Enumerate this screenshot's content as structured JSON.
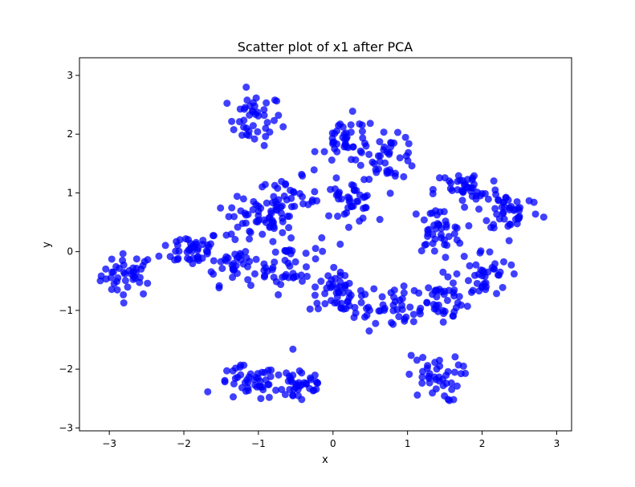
{
  "chart_data": {
    "type": "scatter",
    "title": "Scatter plot of x1 after PCA",
    "xlabel": "x",
    "ylabel": "y",
    "xlim": [
      -3.4,
      3.2
    ],
    "ylim": [
      -3.05,
      3.3
    ],
    "xticks": [
      -3,
      -2,
      -1,
      0,
      1,
      2,
      3
    ],
    "yticks": [
      -3,
      -2,
      -1,
      0,
      1,
      2,
      3
    ],
    "grid": false,
    "marker_color": "#0000ff",
    "marker_opacity": 0.75,
    "points_per_cluster": 42,
    "clusters": [
      {
        "center": [
          -2.75,
          -0.4
        ],
        "spread": [
          0.18,
          0.18
        ]
      },
      {
        "center": [
          -1.05,
          2.25
        ],
        "spread": [
          0.18,
          0.22
        ]
      },
      {
        "center": [
          -1.05,
          0.55
        ],
        "spread": [
          0.2,
          0.18
        ]
      },
      {
        "center": [
          -1.9,
          0.05
        ],
        "spread": [
          0.2,
          0.15
        ]
      },
      {
        "center": [
          -1.3,
          -0.2
        ],
        "spread": [
          0.22,
          0.18
        ]
      },
      {
        "center": [
          -0.6,
          -0.2
        ],
        "spread": [
          0.22,
          0.25
        ]
      },
      {
        "center": [
          -0.6,
          0.85
        ],
        "spread": [
          0.2,
          0.2
        ]
      },
      {
        "center": [
          0.05,
          -0.7
        ],
        "spread": [
          0.18,
          0.15
        ]
      },
      {
        "center": [
          -0.45,
          -2.25
        ],
        "spread": [
          0.2,
          0.18
        ]
      },
      {
        "center": [
          -1.15,
          -2.25
        ],
        "spread": [
          0.2,
          0.15
        ]
      },
      {
        "center": [
          0.2,
          1.9
        ],
        "spread": [
          0.2,
          0.2
        ]
      },
      {
        "center": [
          0.75,
          1.6
        ],
        "spread": [
          0.2,
          0.18
        ]
      },
      {
        "center": [
          0.2,
          0.85
        ],
        "spread": [
          0.18,
          0.18
        ]
      },
      {
        "center": [
          1.4,
          0.35
        ],
        "spread": [
          0.18,
          0.2
        ]
      },
      {
        "center": [
          1.8,
          1.05
        ],
        "spread": [
          0.22,
          0.18
        ]
      },
      {
        "center": [
          2.4,
          0.7
        ],
        "spread": [
          0.2,
          0.18
        ]
      },
      {
        "center": [
          2.0,
          -0.4
        ],
        "spread": [
          0.18,
          0.22
        ]
      },
      {
        "center": [
          1.4,
          -0.85
        ],
        "spread": [
          0.22,
          0.18
        ]
      },
      {
        "center": [
          1.35,
          -2.15
        ],
        "spread": [
          0.18,
          0.2
        ]
      },
      {
        "center": [
          0.6,
          -0.95
        ],
        "spread": [
          0.25,
          0.18
        ]
      }
    ]
  }
}
